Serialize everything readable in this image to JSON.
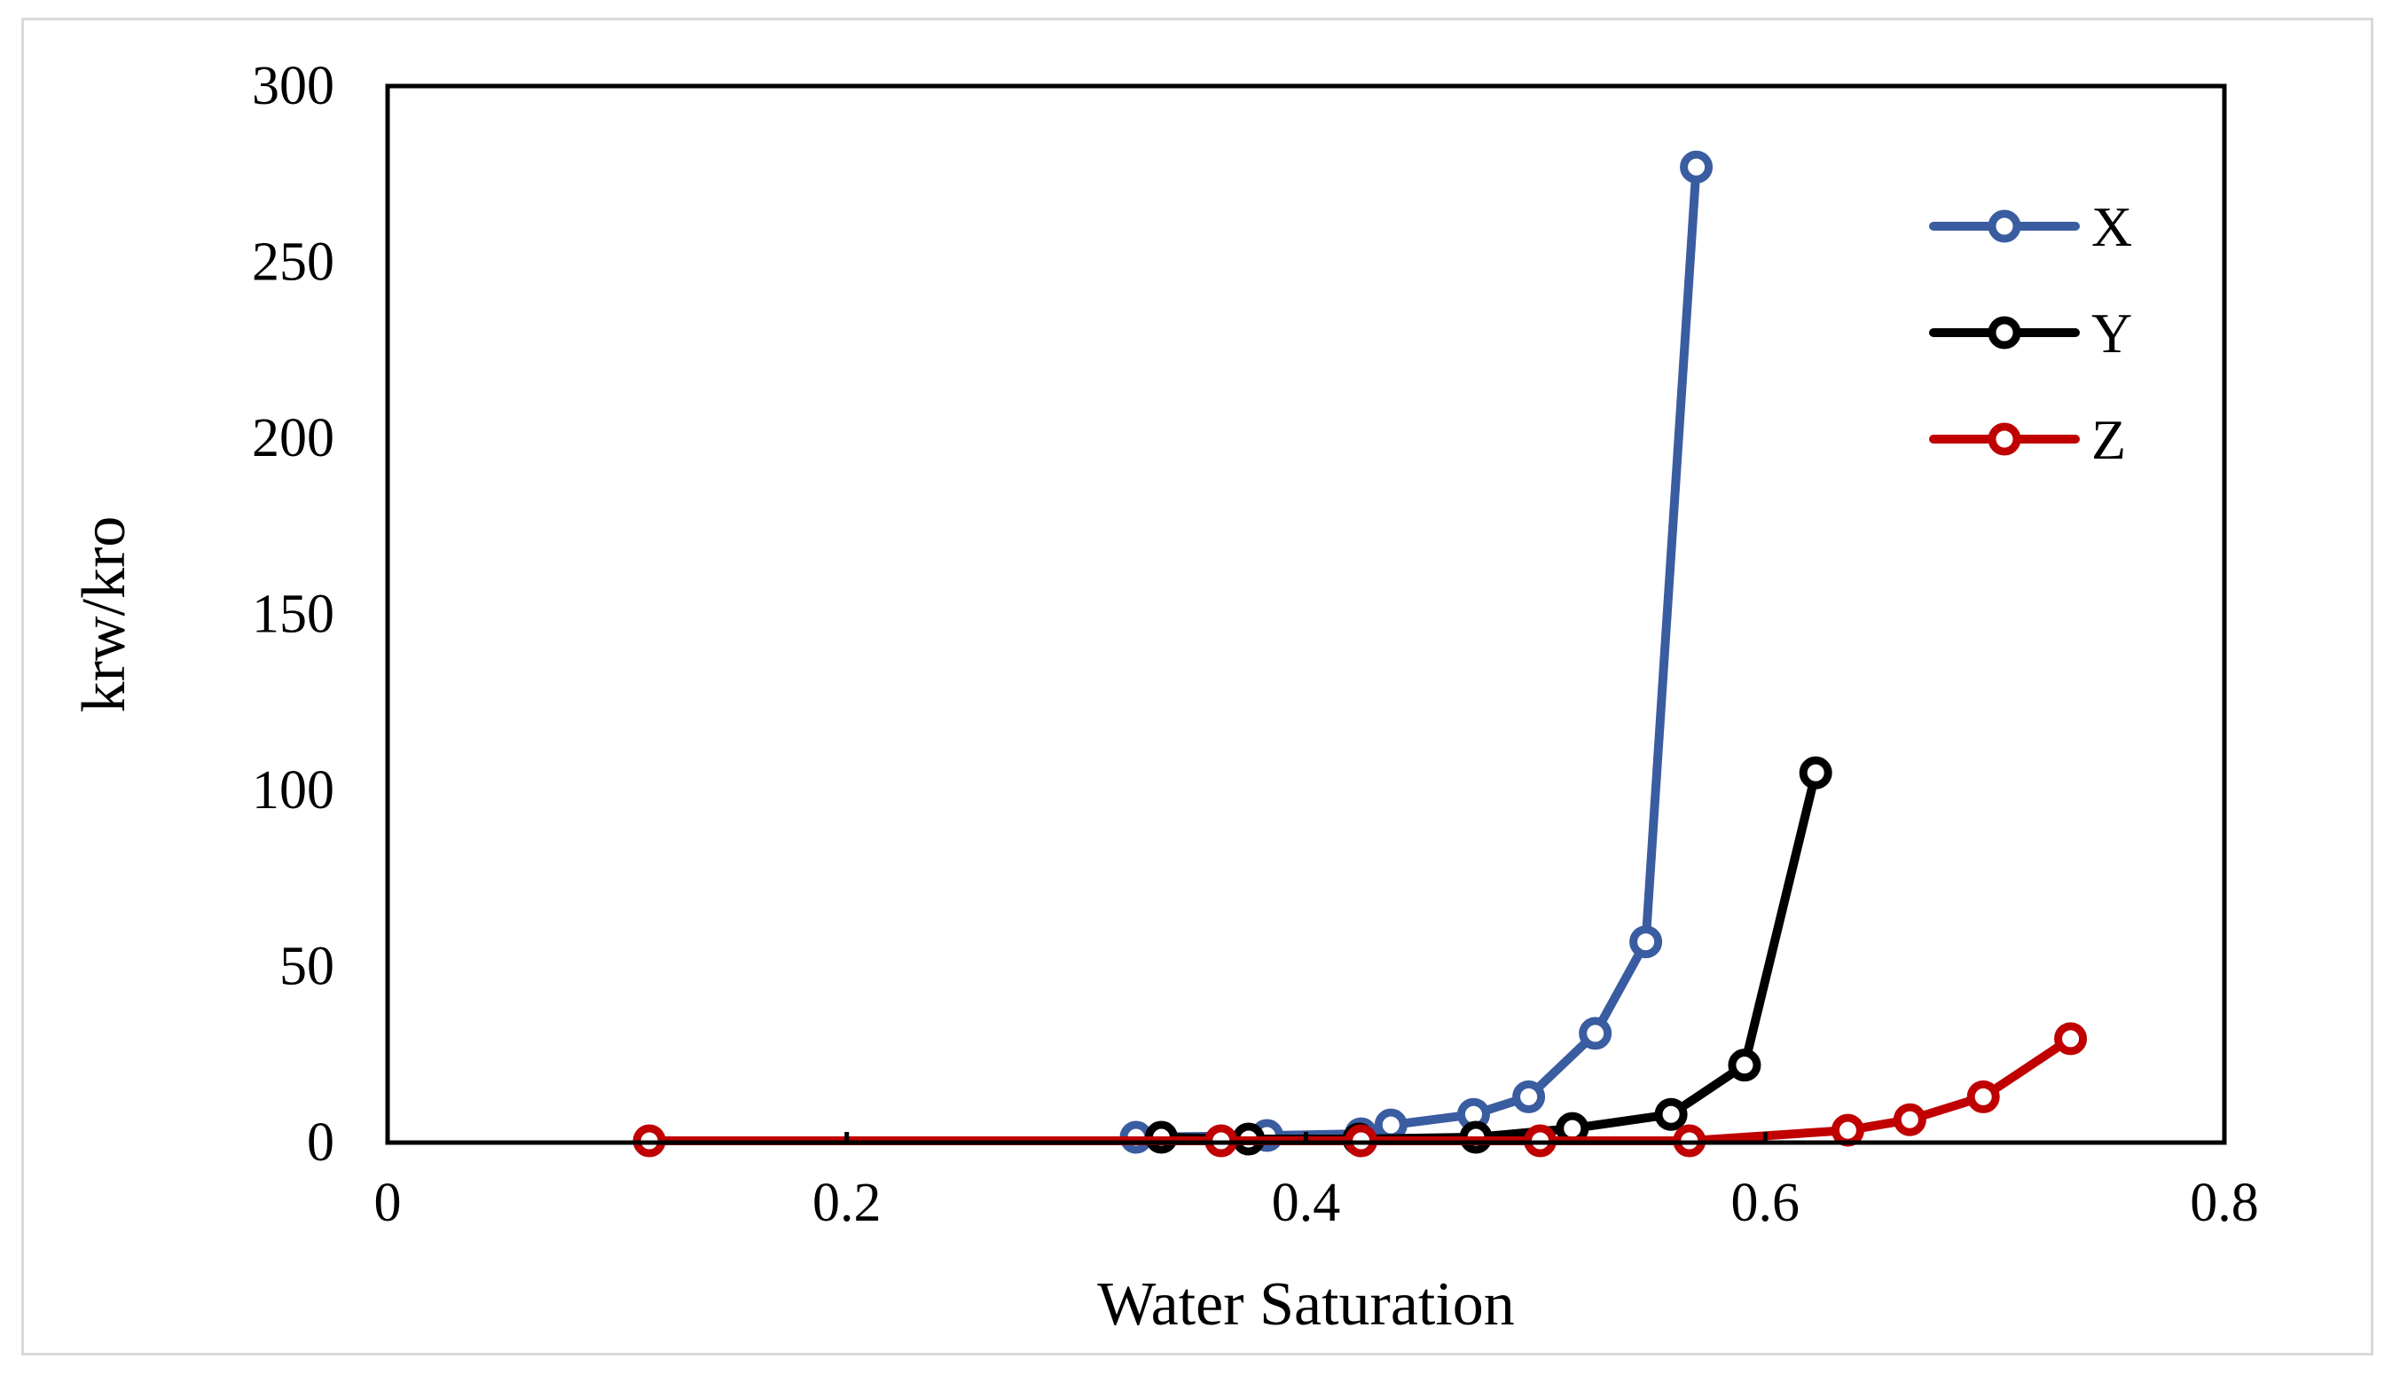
{
  "chart_data": {
    "type": "line",
    "title": "",
    "xlabel": "Water Saturation",
    "ylabel": "krw/kro",
    "xlim": [
      0,
      0.8
    ],
    "ylim": [
      0,
      300
    ],
    "xticks": [
      0,
      0.2,
      0.4,
      0.6,
      0.8
    ],
    "xtick_labels": [
      "0",
      "0.2",
      "0.4",
      "0.6",
      "0.8"
    ],
    "yticks": [
      0,
      50,
      100,
      150,
      200,
      250,
      300
    ],
    "ytick_labels": [
      "0",
      "50",
      "100",
      "150",
      "200",
      "250",
      "300"
    ],
    "grid": false,
    "legend_position": "top-right",
    "series": [
      {
        "name": "X",
        "color": "#3A5CA0",
        "x": [
          0.326,
          0.383,
          0.424,
          0.437,
          0.473,
          0.497,
          0.526,
          0.548,
          0.57
        ],
        "y": [
          1.5,
          2,
          2.5,
          5,
          8,
          13,
          31,
          57,
          277
        ]
      },
      {
        "name": "Y",
        "color": "#000000",
        "x": [
          0.337,
          0.375,
          0.423,
          0.474,
          0.516,
          0.559,
          0.591,
          0.622
        ],
        "y": [
          1.5,
          1,
          1,
          1.5,
          4,
          8,
          22,
          105
        ]
      },
      {
        "name": "Z",
        "color": "#C00000",
        "x": [
          0.114,
          0.363,
          0.424,
          0.502,
          0.567,
          0.636,
          0.663,
          0.695,
          0.733
        ],
        "y": [
          0.5,
          0.5,
          0.5,
          0.5,
          0.5,
          3.5,
          6.5,
          13,
          29.5
        ]
      }
    ]
  }
}
